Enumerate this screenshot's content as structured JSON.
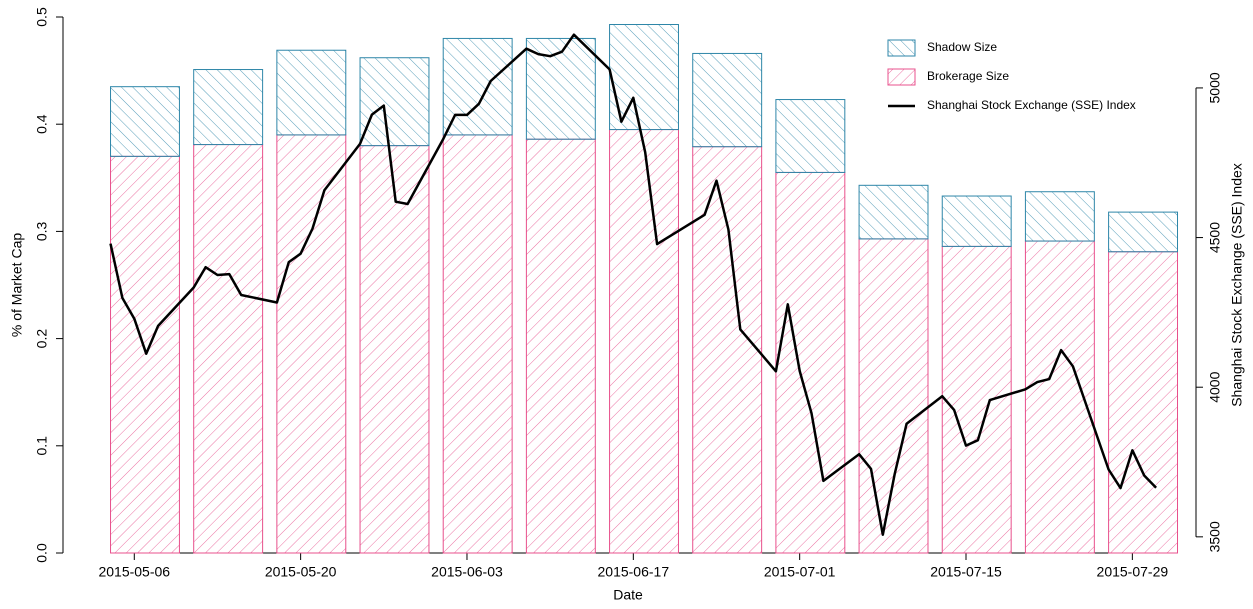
{
  "chart_data": {
    "type": "bar",
    "xlabel": "Date",
    "ylabel": "% of Market Cap",
    "y2label": "Shanghai Stock Exchange (SSE) Index",
    "x": [
      "2015-05-04",
      "2015-05-11",
      "2015-05-18",
      "2015-05-25",
      "2015-06-01",
      "2015-06-08",
      "2015-06-15",
      "2015-06-22",
      "2015-06-29",
      "2015-07-06",
      "2015-07-13",
      "2015-07-20",
      "2015-07-27"
    ],
    "xlim": [
      "2015-04-30",
      "2015-08-01"
    ],
    "xticks": [
      "2015-05-06",
      "2015-05-20",
      "2015-06-03",
      "2015-06-17",
      "2015-07-01",
      "2015-07-15",
      "2015-07-29"
    ],
    "ylim": [
      0,
      0.5
    ],
    "yticks": [
      {
        "value": 0,
        "label": "0.0"
      },
      0.1,
      0.2,
      0.3,
      0.4,
      0.5
    ],
    "y2lim": [
      3446,
      5237
    ],
    "y2ticks": [
      3500,
      4000,
      4500,
      5000
    ],
    "stacked": true,
    "hatch": true,
    "legend": "top-right",
    "series": [
      {
        "name": "Shadow Size",
        "color": "#2e86a8",
        "values": [
          0.065,
          0.07,
          0.079,
          0.082,
          0.09,
          0.094,
          0.098,
          0.087,
          0.068,
          0.05,
          0.047,
          0.046,
          0.037
        ]
      },
      {
        "name": "Brokerage Size",
        "color": "#e8508c",
        "values": [
          0.37,
          0.381,
          0.39,
          0.38,
          0.39,
          0.386,
          0.395,
          0.379,
          0.355,
          0.293,
          0.286,
          0.291,
          0.281
        ]
      },
      {
        "name": "Shanghai Stock Exchange (SSE) Index",
        "type": "line",
        "axis": "y2",
        "color": "#000000",
        "x": [
          "2015-05-04",
          "2015-05-05",
          "2015-05-06",
          "2015-05-07",
          "2015-05-08",
          "2015-05-11",
          "2015-05-12",
          "2015-05-13",
          "2015-05-14",
          "2015-05-15",
          "2015-05-18",
          "2015-05-19",
          "2015-05-20",
          "2015-05-21",
          "2015-05-22",
          "2015-05-25",
          "2015-05-26",
          "2015-05-27",
          "2015-05-28",
          "2015-05-29",
          "2015-06-01",
          "2015-06-02",
          "2015-06-03",
          "2015-06-04",
          "2015-06-05",
          "2015-06-08",
          "2015-06-09",
          "2015-06-10",
          "2015-06-11",
          "2015-06-12",
          "2015-06-15",
          "2015-06-16",
          "2015-06-17",
          "2015-06-18",
          "2015-06-19",
          "2015-06-23",
          "2015-06-24",
          "2015-06-25",
          "2015-06-26",
          "2015-06-29",
          "2015-06-30",
          "2015-07-01",
          "2015-07-02",
          "2015-07-03",
          "2015-07-06",
          "2015-07-07",
          "2015-07-08",
          "2015-07-09",
          "2015-07-10",
          "2015-07-13",
          "2015-07-14",
          "2015-07-15",
          "2015-07-16",
          "2015-07-17",
          "2015-07-20",
          "2015-07-21",
          "2015-07-22",
          "2015-07-23",
          "2015-07-24",
          "2015-07-27",
          "2015-07-28",
          "2015-07-29",
          "2015-07-30",
          "2015-07-31"
        ],
        "values": [
          4480,
          4298,
          4229,
          4112,
          4205,
          4333,
          4401,
          4375,
          4378,
          4308,
          4283,
          4418,
          4446,
          4530,
          4658,
          4813,
          4911,
          4941,
          4620,
          4612,
          4829,
          4910,
          4910,
          4947,
          5023,
          5131,
          5113,
          5106,
          5121,
          5178,
          5062,
          4887,
          4967,
          4785,
          4478,
          4576,
          4690,
          4527,
          4193,
          4053,
          4277,
          4054,
          3913,
          3687,
          3776,
          3727,
          3507,
          3710,
          3878,
          3970,
          3924,
          3805,
          3823,
          3957,
          3993,
          4017,
          4027,
          4124,
          4070,
          3725,
          3663,
          3789,
          3705,
          3664
        ]
      }
    ]
  }
}
